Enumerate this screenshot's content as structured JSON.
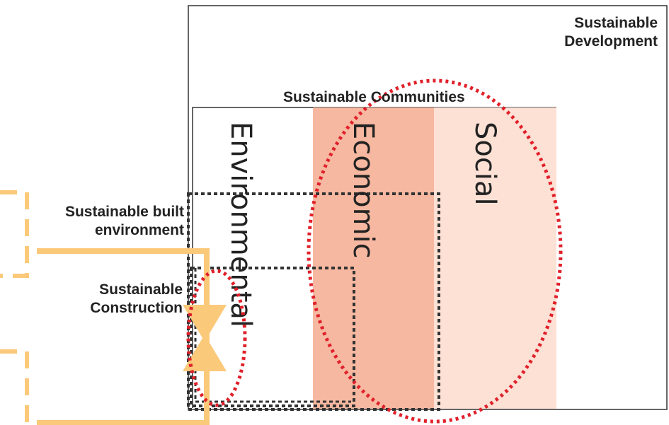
{
  "labels": {
    "sustainable_development_line1": "Sustainable",
    "sustainable_development_line2": "Development",
    "sustainable_communities": "Sustainable Communities",
    "sustainable_built_environment_line1": "Sustainable built",
    "sustainable_built_environment_line2": "environment",
    "sustainable_construction_line1": "Sustainable",
    "sustainable_construction_line2": "Construction"
  },
  "columns": {
    "environmental": "Environmental",
    "economic": "Economic",
    "social": "Social"
  },
  "colors": {
    "economic_fill": "#f6b8a0",
    "social_fill": "#fde1d5",
    "dotted_ellipse": "#e0202a",
    "dotted_box": "#333333",
    "orange_bracket": "#fbc97a",
    "frame": "#333333"
  }
}
